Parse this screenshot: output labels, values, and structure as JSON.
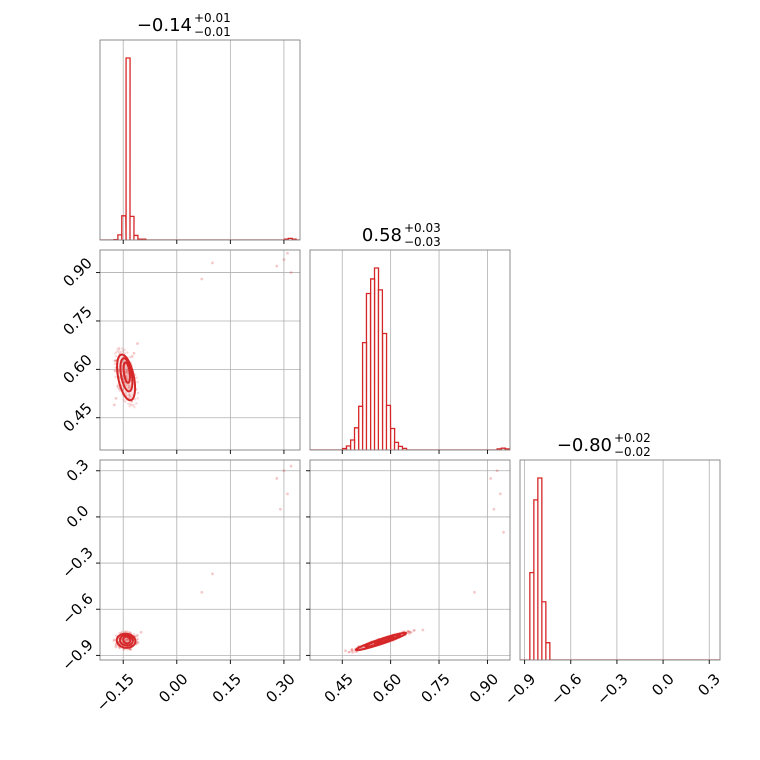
{
  "chart_data": {
    "type": "corner",
    "color": "#d62728",
    "titles": [
      {
        "value": "−0.14",
        "plus": "+0.01",
        "minus": "−0.01"
      },
      {
        "value": "0.58",
        "plus": "+0.03",
        "minus": "−0.03"
      },
      {
        "value": "−0.80",
        "plus": "+0.02",
        "minus": "−0.02"
      }
    ],
    "parameters": [
      {
        "index": 0,
        "range": [
          -0.215,
          0.345
        ],
        "ticks": [
          -0.15,
          0.0,
          0.15,
          0.3
        ],
        "tick_labels": [
          "−0.15",
          "0.00",
          "0.15",
          "0.30"
        ],
        "histogram": {
          "bin_width": 0.0112,
          "bins": [
            [
              -0.176,
              2
            ],
            [
              -0.165,
              28
            ],
            [
              -0.154,
              133
            ],
            [
              -0.142,
              1000
            ],
            [
              -0.131,
              130
            ],
            [
              -0.12,
              25
            ],
            [
              -0.109,
              5
            ],
            [
              -0.098,
              5
            ],
            [
              0.301,
              5
            ],
            [
              0.312,
              9
            ],
            [
              0.323,
              5
            ]
          ]
        }
      },
      {
        "index": 1,
        "range": [
          0.35,
          0.97
        ],
        "ticks": [
          0.45,
          0.6,
          0.75,
          0.9
        ],
        "tick_labels": [
          "0.45",
          "0.60",
          "0.75",
          "0.90"
        ],
        "histogram": {
          "bin_width": 0.0124,
          "bins": [
            [
              0.451,
              8
            ],
            [
              0.463,
              22
            ],
            [
              0.476,
              55
            ],
            [
              0.488,
              122
            ],
            [
              0.501,
              240
            ],
            [
              0.513,
              590
            ],
            [
              0.525,
              860
            ],
            [
              0.538,
              940
            ],
            [
              0.55,
              1000
            ],
            [
              0.562,
              880
            ],
            [
              0.575,
              640
            ],
            [
              0.587,
              245
            ],
            [
              0.6,
              118
            ],
            [
              0.612,
              42
            ],
            [
              0.624,
              20
            ],
            [
              0.637,
              9
            ],
            [
              0.93,
              6
            ],
            [
              0.943,
              10
            ],
            [
              0.955,
              6
            ]
          ]
        }
      },
      {
        "index": 2,
        "range": [
          -0.93,
          0.37
        ],
        "ticks": [
          -0.9,
          -0.6,
          -0.3,
          0.0,
          0.3
        ],
        "tick_labels": [
          "−0.9",
          "−0.6",
          "−0.3",
          "0.0",
          "0.3"
        ],
        "histogram": {
          "bin_width": 0.026,
          "bins": [
            [
              -0.866,
              480
            ],
            [
              -0.84,
              880
            ],
            [
              -0.814,
              1000
            ],
            [
              -0.788,
              320
            ],
            [
              -0.762,
              95
            ]
          ]
        }
      }
    ],
    "scatter_sample": {
      "p0_p1": [
        [
          -0.139,
          0.595
        ],
        [
          -0.15,
          0.57
        ],
        [
          -0.16,
          0.54
        ],
        [
          -0.13,
          0.62
        ],
        [
          -0.12,
          0.65
        ],
        [
          -0.17,
          0.51
        ],
        [
          -0.11,
          0.68
        ],
        [
          -0.145,
          0.56
        ],
        [
          -0.135,
          0.61
        ],
        [
          -0.155,
          0.58
        ],
        [
          -0.175,
          0.49
        ],
        [
          -0.125,
          0.64
        ],
        [
          0.1,
          0.93
        ],
        [
          0.07,
          0.88
        ],
        [
          0.28,
          0.92
        ],
        [
          0.3,
          0.94
        ],
        [
          0.32,
          0.9
        ],
        [
          0.31,
          0.96
        ]
      ],
      "p0_p2": [
        [
          -0.14,
          -0.8
        ],
        [
          -0.15,
          -0.815
        ],
        [
          -0.13,
          -0.79
        ],
        [
          -0.16,
          -0.83
        ],
        [
          -0.12,
          -0.78
        ],
        [
          -0.145,
          -0.805
        ],
        [
          -0.135,
          -0.795
        ],
        [
          -0.11,
          -0.77
        ],
        [
          -0.17,
          -0.845
        ],
        [
          -0.1,
          -0.75
        ],
        [
          0.1,
          -0.37
        ],
        [
          0.07,
          -0.49
        ],
        [
          0.28,
          0.25
        ],
        [
          0.3,
          0.3
        ],
        [
          0.31,
          0.15
        ],
        [
          0.29,
          0.05
        ],
        [
          0.32,
          0.33
        ]
      ],
      "p1_p2": [
        [
          0.58,
          -0.8
        ],
        [
          0.56,
          -0.815
        ],
        [
          0.6,
          -0.785
        ],
        [
          0.54,
          -0.83
        ],
        [
          0.62,
          -0.77
        ],
        [
          0.5,
          -0.85
        ],
        [
          0.66,
          -0.75
        ],
        [
          0.48,
          -0.86
        ],
        [
          0.7,
          -0.735
        ],
        [
          0.46,
          -0.87
        ],
        [
          0.86,
          -0.49
        ],
        [
          0.91,
          0.25
        ],
        [
          0.93,
          0.3
        ],
        [
          0.94,
          0.15
        ],
        [
          0.92,
          0.05
        ],
        [
          0.95,
          -0.1
        ]
      ]
    },
    "contours": {
      "p0_p1": [
        {
          "center": [
            -0.14,
            0.59
          ],
          "semi_axes": [
            0.008,
            0.032
          ],
          "tilt": 0.12
        },
        {
          "center": [
            -0.141,
            0.583
          ],
          "semi_axes": [
            0.015,
            0.052
          ],
          "tilt": 0.15
        },
        {
          "center": [
            -0.142,
            0.575
          ],
          "semi_axes": [
            0.022,
            0.072
          ],
          "tilt": 0.18
        }
      ],
      "p0_p2": [
        {
          "center": [
            -0.14,
            -0.8
          ],
          "semi_axes": [
            0.01,
            0.022
          ],
          "tilt": 0.05
        },
        {
          "center": [
            -0.141,
            -0.802
          ],
          "semi_axes": [
            0.018,
            0.034
          ],
          "tilt": 0.05
        },
        {
          "center": [
            -0.142,
            -0.805
          ],
          "semi_axes": [
            0.026,
            0.046
          ],
          "tilt": 0.05
        }
      ],
      "p1_p2": [
        {
          "center": [
            0.58,
            -0.8
          ],
          "semi_axes": [
            0.035,
            0.006
          ],
          "tilt": 0.62
        },
        {
          "center": [
            0.575,
            -0.805
          ],
          "semi_axes": [
            0.065,
            0.01
          ],
          "tilt": 0.62
        },
        {
          "center": [
            0.57,
            -0.81
          ],
          "semi_axes": [
            0.095,
            0.014
          ],
          "tilt": 0.62
        }
      ]
    },
    "grid": true
  }
}
